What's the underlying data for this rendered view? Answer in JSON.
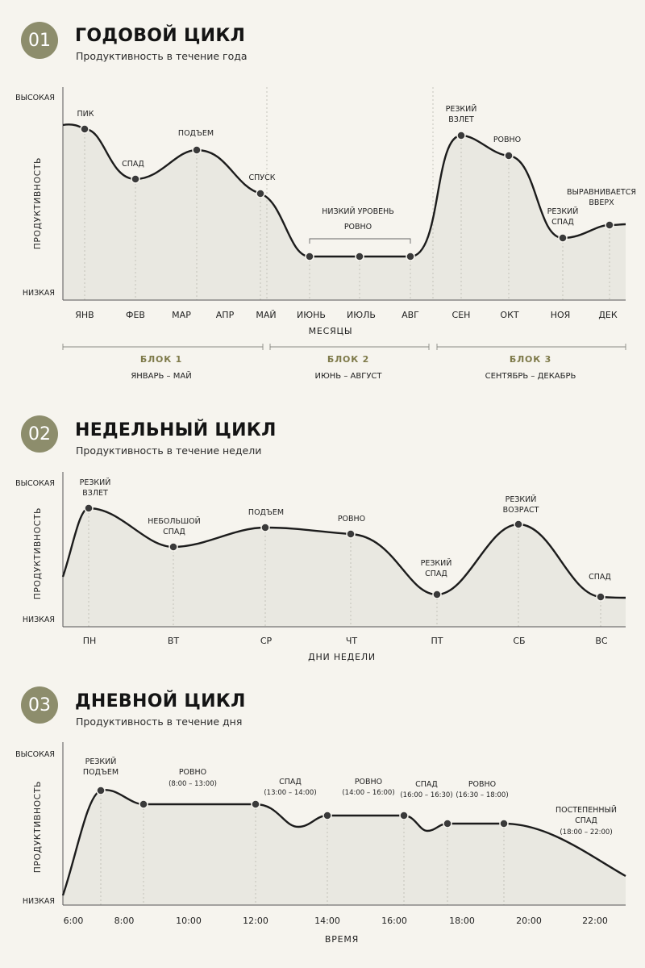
{
  "sections": [
    {
      "number": "01",
      "title": "ГОДОВОЙ ЦИКЛ",
      "subtitle": "Продуктивность в течение года"
    },
    {
      "number": "02",
      "title": "НЕДЕЛЬНЫЙ ЦИКЛ",
      "subtitle": "Продуктивность в течение недели"
    },
    {
      "number": "03",
      "title": "ДНЕВНОЙ ЦИКЛ",
      "subtitle": "Продуктивность в течение дня"
    }
  ],
  "colors": {
    "line": "#1c1c1c",
    "fill": "#e9e8e1",
    "accent": "#8d8d6c",
    "block_title": "#7e7a4a",
    "grid": "#b8b8b0"
  },
  "chart_data": [
    {
      "type": "area",
      "title": "ГОДОВОЙ ЦИКЛ",
      "xlabel": "МЕСЯЦЫ",
      "ylabel": "ПРОДУКТИВНОСТЬ",
      "y_high_label": "ВЫСОКАЯ",
      "y_low_label": "НИЗКАЯ",
      "ylim": [
        0,
        100
      ],
      "categories": [
        "ЯНВ",
        "ФЕВ",
        "МАР",
        "АПР",
        "МАЙ",
        "ИЮНЬ",
        "ИЮЛЬ",
        "АВГ",
        "СЕН",
        "ОКТ",
        "НОЯ",
        "ДЕК"
      ],
      "points": [
        {
          "x": 0.5,
          "y": 85,
          "label": "ПИК"
        },
        {
          "x": 1.5,
          "y": 58,
          "label": "СПАД"
        },
        {
          "x": 2.8,
          "y": 72,
          "label": "ПОДЪЕМ"
        },
        {
          "x": 4.0,
          "y": 50,
          "label": "СПУСК"
        },
        {
          "x": 5.0,
          "y": 18,
          "label": ""
        },
        {
          "x": 6.0,
          "y": 18,
          "label": ""
        },
        {
          "x": 7.0,
          "y": 18,
          "label": ""
        },
        {
          "x": 8.0,
          "y": 88,
          "label": "РЕЗКИЙ ВЗЛЕТ"
        },
        {
          "x": 9.0,
          "y": 74,
          "label": "РОВНО"
        },
        {
          "x": 10.0,
          "y": 29,
          "label": "РЕЗКИЙ СПАД"
        },
        {
          "x": 11.0,
          "y": 35,
          "label": "ВЫРАВНИВАЕТСЯ ВВЕРХ"
        }
      ],
      "bracket_label": [
        "НИЗКИЙ УРОВЕНЬ",
        "РОВНО"
      ],
      "blocks": [
        {
          "title": "БЛОК 1",
          "range": "ЯНВАРЬ – МАЙ"
        },
        {
          "title": "БЛОК 2",
          "range": "ИЮНЬ – АВГУСТ"
        },
        {
          "title": "БЛОК 3",
          "range": "СЕНТЯБРЬ – ДЕКАБРЬ"
        }
      ]
    },
    {
      "type": "area",
      "title": "НЕДЕЛЬНЫЙ ЦИКЛ",
      "xlabel": "ДНИ НЕДЕЛИ",
      "ylabel": "ПРОДУКТИВНОСТЬ",
      "y_high_label": "ВЫСОКАЯ",
      "y_low_label": "НИЗКАЯ",
      "ylim": [
        0,
        100
      ],
      "categories": [
        "ПН",
        "ВТ",
        "СР",
        "ЧТ",
        "ПТ",
        "СБ",
        "ВС"
      ],
      "points": [
        {
          "x": 0,
          "y": 85,
          "label": "РЕЗКИЙ ВЗЛЕТ"
        },
        {
          "x": 1,
          "y": 55,
          "label": "НЕБОЛЬШОЙ СПАД"
        },
        {
          "x": 2,
          "y": 70,
          "label": "ПОДЪЕМ"
        },
        {
          "x": 3,
          "y": 64,
          "label": "РОВНО"
        },
        {
          "x": 4,
          "y": 20,
          "label": "РЕЗКИЙ СПАД"
        },
        {
          "x": 5,
          "y": 71,
          "label": "РЕЗКИЙ ВОЗРАСТ"
        },
        {
          "x": 6,
          "y": 18,
          "label": "СПАД"
        }
      ]
    },
    {
      "type": "area",
      "title": "ДНЕВНОЙ ЦИКЛ",
      "xlabel": "ВРЕМЯ",
      "ylabel": "ПРОДУКТИВНОСТЬ",
      "y_high_label": "ВЫСОКАЯ",
      "y_low_label": "НИЗКАЯ",
      "ylim": [
        0,
        100
      ],
      "x_ticks": [
        "6:00",
        "8:00",
        "10:00",
        "12:00",
        "14:00",
        "16:00",
        "18:00",
        "20:00",
        "22:00"
      ],
      "points": [
        {
          "x": 7.0,
          "y": 82,
          "label": "РЕЗКИЙ ПОДЪЕМ"
        },
        {
          "x": 8.5,
          "y": 74,
          "label": ""
        },
        {
          "x": 12.0,
          "y": 74,
          "label": ""
        },
        {
          "x": 14.0,
          "y": 64,
          "label": ""
        },
        {
          "x": 16.3,
          "y": 64,
          "label": ""
        },
        {
          "x": 17.6,
          "y": 58,
          "label": ""
        },
        {
          "x": 19.2,
          "y": 58,
          "label": ""
        }
      ],
      "annotations": [
        {
          "label": "РОВНО",
          "range": "(8:00 – 13:00)"
        },
        {
          "label": "СПАД",
          "range": "(13:00 – 14:00)"
        },
        {
          "label": "РОВНО",
          "range": "(14:00 – 16:00)"
        },
        {
          "label": "СПАД",
          "range": "(16:00 – 16:30)"
        },
        {
          "label": "РОВНО",
          "range": "(16:30 – 18:00)"
        },
        {
          "label": "ПОСТЕПЕННЫЙ СПАД",
          "range": "(18:00 – 22:00)"
        }
      ]
    }
  ]
}
